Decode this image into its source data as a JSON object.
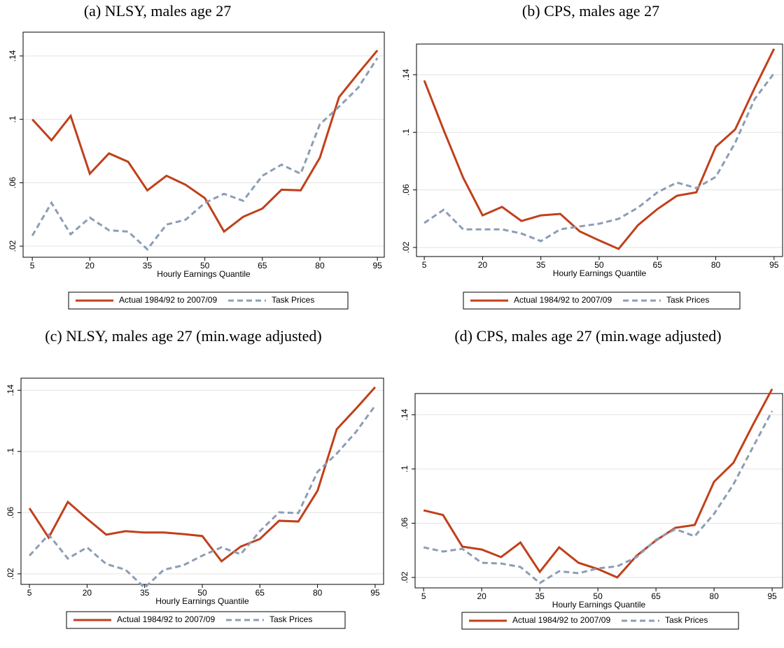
{
  "chart_data": [
    {
      "type": "line",
      "title": "(a) NLSY, males age 27",
      "xlabel": "Hourly Earnings Quantile",
      "x": [
        5,
        10,
        15,
        20,
        25,
        30,
        35,
        40,
        45,
        50,
        55,
        60,
        65,
        70,
        75,
        80,
        85,
        90,
        95
      ],
      "xlim": [
        2.6,
        96.8
      ],
      "xticks": [
        5,
        20,
        35,
        50,
        65,
        80,
        95
      ],
      "ylim": [
        0.013,
        0.155
      ],
      "yticks": [
        {
          "value": 0.02,
          "label": ".02"
        },
        {
          "value": 0.06,
          "label": ".06"
        },
        {
          "value": 0.1,
          "label": ".1"
        },
        {
          "value": 0.14,
          "label": ".14"
        }
      ],
      "grid": true,
      "legend": "bottom",
      "series": [
        {
          "name": "Actual 1984/92 to 2007/09",
          "color": "#c0401a",
          "dash": false,
          "values": [
            0.1,
            0.0868,
            0.1022,
            0.0657,
            0.0785,
            0.0732,
            0.0552,
            0.0644,
            0.0587,
            0.0503,
            0.0292,
            0.0385,
            0.0437,
            0.0556,
            0.0552,
            0.0758,
            0.114,
            0.129,
            0.1435
          ]
        },
        {
          "name": "Task Prices",
          "color": "#8c9db5",
          "dash": true,
          "values": [
            0.0266,
            0.0473,
            0.0275,
            0.038,
            0.03,
            0.0292,
            0.018,
            0.0336,
            0.0367,
            0.0473,
            0.053,
            0.0486,
            0.0644,
            0.0714,
            0.0657,
            0.0969,
            0.108,
            0.12,
            0.1387
          ]
        }
      ]
    },
    {
      "type": "line",
      "title": "(b) CPS, males age 27",
      "xlabel": "Hourly Earnings Quantile",
      "x": [
        5,
        10,
        15,
        20,
        25,
        30,
        35,
        40,
        45,
        50,
        55,
        60,
        65,
        70,
        75,
        80,
        85,
        90,
        95
      ],
      "xlim": [
        3.0,
        97.2
      ],
      "xticks": [
        5,
        20,
        35,
        50,
        65,
        80,
        95
      ],
      "ylim": [
        0.0137,
        0.1613
      ],
      "yticks": [
        {
          "value": 0.02,
          "label": ".02"
        },
        {
          "value": 0.06,
          "label": ".06"
        },
        {
          "value": 0.1,
          "label": ".1"
        },
        {
          "value": 0.14,
          "label": ".14"
        }
      ],
      "grid": true,
      "legend": "bottom",
      "series": [
        {
          "name": "Actual 1984/92 to 2007/09",
          "color": "#c0401a",
          "dash": false,
          "values": [
            0.136,
            0.1015,
            0.0685,
            0.0423,
            0.0482,
            0.0384,
            0.0423,
            0.0433,
            0.0312,
            0.0249,
            0.019,
            0.0355,
            0.0467,
            0.0559,
            0.0583,
            0.0899,
            0.102,
            0.1307,
            0.158
          ]
        },
        {
          "name": "Task Prices",
          "color": "#8c9db5",
          "dash": true,
          "values": [
            0.037,
            0.0462,
            0.0326,
            0.0326,
            0.0326,
            0.0297,
            0.0244,
            0.0326,
            0.0346,
            0.0365,
            0.0399,
            0.0477,
            0.0583,
            0.0651,
            0.0613,
            0.069,
            0.0928,
            0.123,
            0.141
          ]
        }
      ]
    },
    {
      "type": "line",
      "title": "(c) NLSY, males age 27 (min.wage adjusted)",
      "xlabel": "Hourly Earnings Quantile",
      "x": [
        5,
        10,
        15,
        20,
        25,
        30,
        35,
        40,
        45,
        50,
        55,
        60,
        65,
        70,
        75,
        80,
        85,
        90,
        95
      ],
      "xlim": [
        2.8,
        97.2
      ],
      "xticks": [
        5,
        20,
        35,
        50,
        65,
        80,
        95
      ],
      "ylim": [
        0.0131,
        0.1479
      ],
      "yticks": [
        {
          "value": 0.02,
          "label": ".02"
        },
        {
          "value": 0.06,
          "label": ".06"
        },
        {
          "value": 0.1,
          "label": ".1"
        },
        {
          "value": 0.14,
          "label": ".14"
        }
      ],
      "grid": true,
      "legend": "bottom",
      "series": [
        {
          "name": "Actual 1984/92 to 2007/09",
          "color": "#c0401a",
          "dash": false,
          "values": [
            0.0629,
            0.0437,
            0.067,
            0.056,
            0.0456,
            0.0479,
            0.047,
            0.047,
            0.046,
            0.0447,
            0.0282,
            0.0378,
            0.0428,
            0.0547,
            0.0542,
            0.0743,
            0.1145,
            0.128,
            0.142
          ]
        },
        {
          "name": "Task Prices",
          "color": "#8c9db5",
          "dash": true,
          "values": [
            0.0319,
            0.0456,
            0.03,
            0.0373,
            0.0264,
            0.0227,
            0.0109,
            0.0227,
            0.0255,
            0.0319,
            0.0373,
            0.0328,
            0.0479,
            0.0602,
            0.0597,
            0.0867,
            0.0986,
            0.1127,
            0.13
          ]
        }
      ]
    },
    {
      "type": "line",
      "title": "(d) CPS, males age 27 (min.wage adjusted)",
      "xlabel": "Hourly Earnings Quantile",
      "x": [
        5,
        10,
        15,
        20,
        25,
        30,
        35,
        40,
        45,
        50,
        55,
        60,
        65,
        70,
        75,
        80,
        85,
        90,
        95
      ],
      "xlim": [
        2.8,
        97.7
      ],
      "xticks": [
        5,
        20,
        35,
        50,
        65,
        80,
        95
      ],
      "ylim": [
        0.0123,
        0.1556
      ],
      "yticks": [
        {
          "value": 0.02,
          "label": ".02"
        },
        {
          "value": 0.06,
          "label": ".06"
        },
        {
          "value": 0.1,
          "label": ".1"
        },
        {
          "value": 0.14,
          "label": ".14"
        }
      ],
      "grid": true,
      "legend": "bottom",
      "series": [
        {
          "name": "Actual 1984/92 to 2007/09",
          "color": "#c0401a",
          "dash": false,
          "values": [
            0.0695,
            0.0661,
            0.0427,
            0.0406,
            0.035,
            0.0458,
            0.0241,
            0.0422,
            0.0308,
            0.0262,
            0.02,
            0.036,
            0.0473,
            0.0566,
            0.0587,
            0.0906,
            0.1045,
            0.1324,
            0.159
          ]
        },
        {
          "name": "Task Prices",
          "color": "#8c9db5",
          "dash": true,
          "values": [
            0.0422,
            0.0391,
            0.0411,
            0.0308,
            0.0303,
            0.0277,
            0.0159,
            0.0246,
            0.0231,
            0.0267,
            0.0282,
            0.035,
            0.0478,
            0.0556,
            0.0504,
            0.0669,
            0.0886,
            0.1159,
            0.1427
          ]
        }
      ]
    }
  ]
}
